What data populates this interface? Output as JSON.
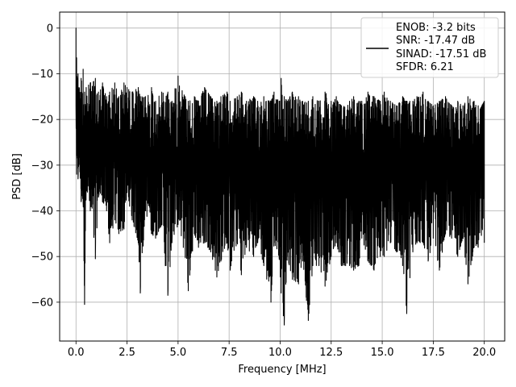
{
  "chart_data": {
    "type": "line",
    "title": "",
    "xlabel": "Frequency [MHz]",
    "ylabel": "PSD [dB]",
    "xlim": [
      -0.8,
      21.0
    ],
    "ylim": [
      -68.5,
      3.5
    ],
    "x_ticks": [
      0.0,
      2.5,
      5.0,
      7.5,
      10.0,
      12.5,
      15.0,
      17.5,
      20.0
    ],
    "x_tick_labels": [
      "0.0",
      "2.5",
      "5.0",
      "7.5",
      "10.0",
      "12.5",
      "15.0",
      "17.5",
      "20.0"
    ],
    "y_ticks": [
      0,
      -10,
      -20,
      -30,
      -40,
      -50,
      -60
    ],
    "y_tick_labels": [
      "0",
      "−10",
      "−20",
      "−30",
      "−40",
      "−50",
      "−60"
    ],
    "grid": true,
    "legend_position": "top-right",
    "line_color": "#000000",
    "legend_entries": [
      "ENOB: -3.2 bits",
      "SNR: -17.47 dB",
      "SINAD: -17.51 dB",
      "SFDR: 6.21"
    ],
    "series": [
      {
        "x_range": [
          0.0,
          20.0
        ],
        "x": [
          0.0,
          0.03,
          0.06,
          0.1,
          0.15,
          0.25,
          0.35,
          0.42,
          0.5,
          0.7,
          0.95,
          1.1,
          1.3,
          1.5,
          1.65,
          1.9,
          2.1,
          2.35,
          2.5,
          2.75,
          3.05,
          3.15,
          3.4,
          3.7,
          3.9,
          4.2,
          4.5,
          4.7,
          5.0,
          5.35,
          5.5,
          5.8,
          6.0,
          6.3,
          6.6,
          6.9,
          7.1,
          7.4,
          7.55,
          7.9,
          8.1,
          8.35,
          8.7,
          8.9,
          9.2,
          9.55,
          9.7,
          9.95,
          10.05,
          10.2,
          10.35,
          10.6,
          10.9,
          11.1,
          11.38,
          11.6,
          11.9,
          12.2,
          12.5,
          12.75,
          13.0,
          13.4,
          13.6,
          13.85,
          14.0,
          14.3,
          14.6,
          14.9,
          15.1,
          15.4,
          15.7,
          16.0,
          16.2,
          16.5,
          16.7,
          17.0,
          17.25,
          17.5,
          17.8,
          18.1,
          18.4,
          18.7,
          18.95,
          19.2,
          19.5,
          19.7,
          20.0
        ],
        "lows": [
          -17,
          -32,
          -24,
          -33,
          -28,
          -38,
          -38,
          -60.5,
          -35,
          -40,
          -50.5,
          -37,
          -38,
          -40,
          -47,
          -42,
          -45,
          -44,
          -36,
          -42,
          -47,
          -58,
          -40,
          -45,
          -46,
          -43,
          -58.5,
          -47,
          -43,
          -50,
          -57.5,
          -45,
          -48,
          -47,
          -49,
          -54.5,
          -51,
          -47,
          -53,
          -47,
          -54,
          -48,
          -50,
          -47,
          -52,
          -60,
          -47,
          -50,
          -58,
          -65,
          -50,
          -55,
          -56,
          -51,
          -64,
          -52,
          -52,
          -56.5,
          -50,
          -47,
          -52,
          -52,
          -53,
          -52,
          -46,
          -51,
          -53,
          -50,
          -50,
          -47,
          -49,
          -52,
          -62.5,
          -49,
          -47,
          -47,
          -51,
          -46,
          -53,
          -45,
          -46,
          -50,
          -46,
          -56,
          -48,
          -48,
          -47
        ],
        "highs": [
          0,
          -6.5,
          -11,
          -10,
          -13,
          -11,
          -9,
          -14,
          -13,
          -12,
          -11,
          -14,
          -12,
          -15,
          -14,
          -12,
          -15,
          -12,
          -13,
          -14,
          -13,
          -15,
          -15,
          -13,
          -16,
          -14,
          -14,
          -16,
          -10.5,
          -15,
          -16,
          -15,
          -16,
          -13,
          -15,
          -16,
          -15,
          -14,
          -16,
          -15,
          -14,
          -16,
          -15,
          -16,
          -15,
          -16,
          -14,
          -16,
          -11,
          -15,
          -16,
          -14,
          -15,
          -16,
          -16,
          -15,
          -16,
          -14,
          -16,
          -15,
          -17,
          -16,
          -15,
          -16,
          -16,
          -14,
          -15,
          -16,
          -14,
          -16,
          -17,
          -15,
          -16,
          -16,
          -15,
          -14,
          -16,
          -17,
          -16,
          -15,
          -17,
          -16,
          -17,
          -15,
          -16,
          -17,
          -16
        ],
        "noise_center_db": -28
      }
    ]
  }
}
